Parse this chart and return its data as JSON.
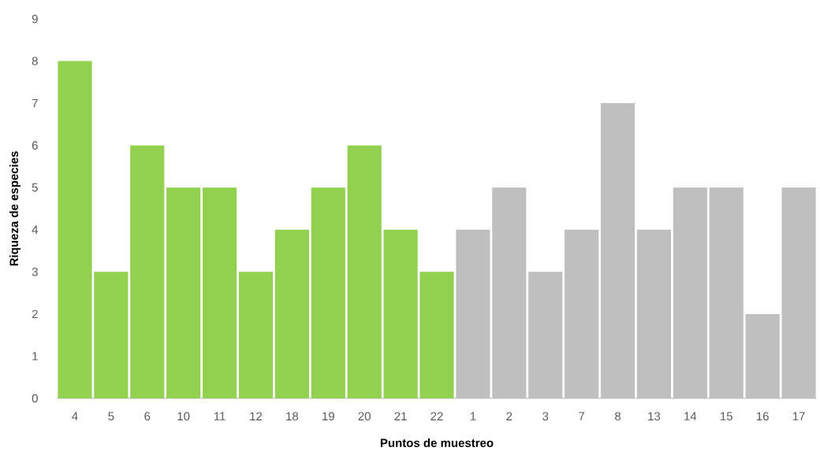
{
  "chart_data": {
    "type": "bar",
    "xlabel": "Puntos de muestreo",
    "ylabel": "Riqueza de especies",
    "categories": [
      "4",
      "5",
      "6",
      "10",
      "11",
      "12",
      "18",
      "19",
      "20",
      "21",
      "22",
      "1",
      "2",
      "3",
      "7",
      "8",
      "13",
      "14",
      "15",
      "16",
      "17"
    ],
    "values": [
      8,
      3,
      6,
      5,
      5,
      3,
      4,
      5,
      6,
      4,
      3,
      4,
      5,
      3,
      4,
      7,
      4,
      5,
      5,
      2,
      5
    ],
    "colors": [
      "#92d050",
      "#92d050",
      "#92d050",
      "#92d050",
      "#92d050",
      "#92d050",
      "#92d050",
      "#92d050",
      "#92d050",
      "#92d050",
      "#92d050",
      "#bfbfbf",
      "#bfbfbf",
      "#bfbfbf",
      "#bfbfbf",
      "#bfbfbf",
      "#bfbfbf",
      "#bfbfbf",
      "#bfbfbf",
      "#bfbfbf",
      "#bfbfbf"
    ],
    "ylim": [
      0,
      9
    ],
    "yticks": [
      0,
      1,
      2,
      3,
      4,
      5,
      6,
      7,
      8,
      9
    ]
  }
}
